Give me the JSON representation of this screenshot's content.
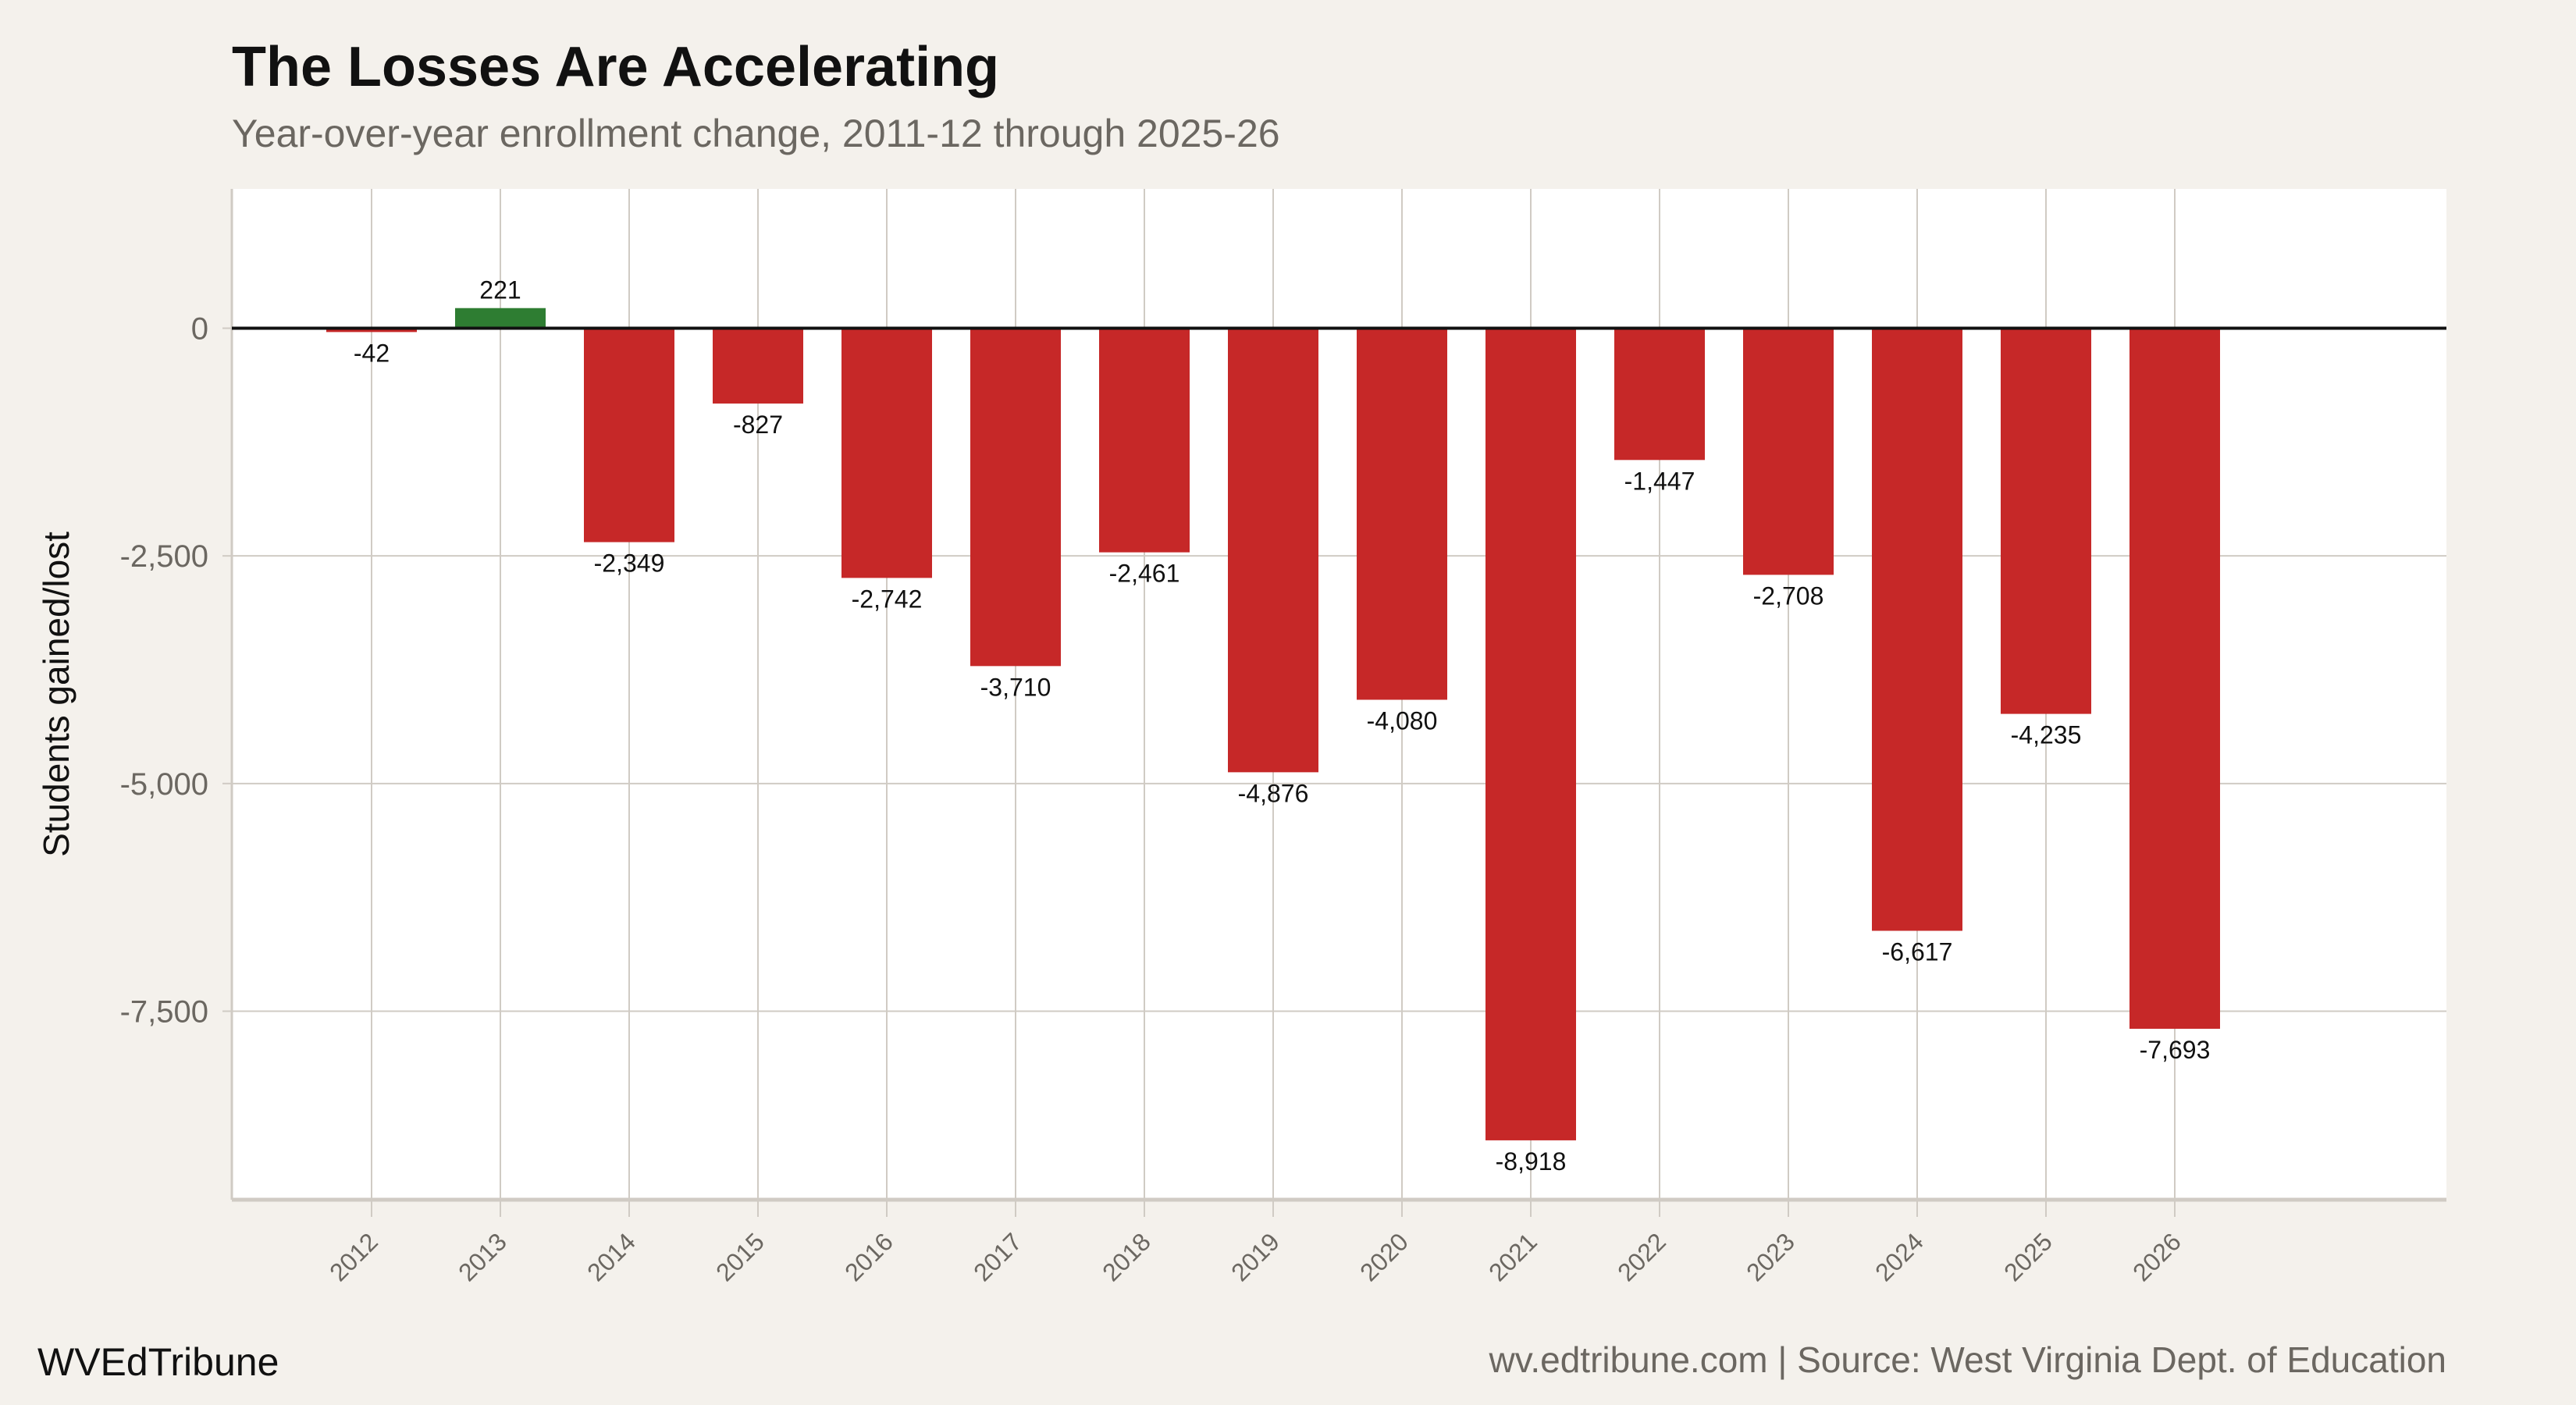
{
  "chart_data": {
    "type": "bar",
    "title": "The Losses Are Accelerating",
    "subtitle": "Year-over-year enrollment change, 2011-12 through 2025-26",
    "xlabel": "",
    "ylabel": "Students gained/lost",
    "categories": [
      "2012",
      "2013",
      "2014",
      "2015",
      "2016",
      "2017",
      "2018",
      "2019",
      "2020",
      "2021",
      "2022",
      "2023",
      "2024",
      "2025",
      "2026"
    ],
    "values": [
      -42,
      221,
      -2349,
      -827,
      -2742,
      -3710,
      -2461,
      -4876,
      -4080,
      -8918,
      -1447,
      -2708,
      -6617,
      -4235,
      -7693
    ],
    "value_labels": [
      "-42",
      "221",
      "-2,349",
      "-827",
      "-2,742",
      "-3,710",
      "-2,461",
      "-4,876",
      "-4,080",
      "-8,918",
      "-1,447",
      "-2,708",
      "-6,617",
      "-4,235",
      "-7,693"
    ],
    "yticks": [
      0,
      -2500,
      -5000,
      -7500
    ],
    "ytick_labels": [
      "0",
      "-2,500",
      "-5,000",
      "-7,500"
    ],
    "ylim": [
      -9570,
      1530
    ],
    "grid": true,
    "legend": "none",
    "colors": {
      "negative": "#c62828",
      "positive": "#2e7d32",
      "background": "#f4f1ec",
      "panel": "#ffffff",
      "grid": "#d0cbc4"
    }
  },
  "footer": {
    "brand": "WVEdTribune",
    "source": "wv.edtribune.com | Source: West Virginia Dept. of Education"
  }
}
